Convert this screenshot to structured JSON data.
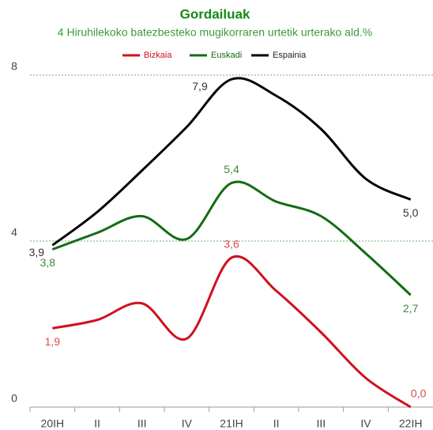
{
  "chart_data": {
    "type": "line",
    "title": "Gordailuak",
    "subtitle": "4 Hiruhilekoko batezbesteko mugikorraren urtetik urterako ald.%",
    "categories": [
      "20IH",
      "II",
      "III",
      "IV",
      "21IH",
      "II",
      "III",
      "IV",
      "22IH"
    ],
    "series": [
      {
        "name": "Bizkaia",
        "color": "#d0101e",
        "values": [
          1.9,
          2.1,
          2.5,
          1.65,
          3.6,
          2.8,
          1.8,
          0.7,
          0.0
        ],
        "value_labels": [
          "1,9",
          null,
          null,
          null,
          "3,6",
          null,
          null,
          null,
          "0,0"
        ]
      },
      {
        "name": "Euskadi",
        "color": "#136b13",
        "values": [
          3.8,
          4.2,
          4.6,
          4.05,
          5.4,
          4.95,
          4.6,
          3.7,
          2.7
        ],
        "value_labels": [
          "3,8",
          null,
          null,
          null,
          "5,4",
          null,
          null,
          null,
          "2,7"
        ]
      },
      {
        "name": "Espainia",
        "color": "#000000",
        "values": [
          3.9,
          4.7,
          5.7,
          6.75,
          7.9,
          7.5,
          6.7,
          5.5,
          5.0
        ],
        "value_labels": [
          "3,9",
          null,
          null,
          null,
          "7,9",
          null,
          null,
          null,
          "5,0"
        ]
      }
    ],
    "ylim": [
      0,
      8
    ],
    "yticks": [
      0,
      4,
      8
    ],
    "grid": true
  }
}
